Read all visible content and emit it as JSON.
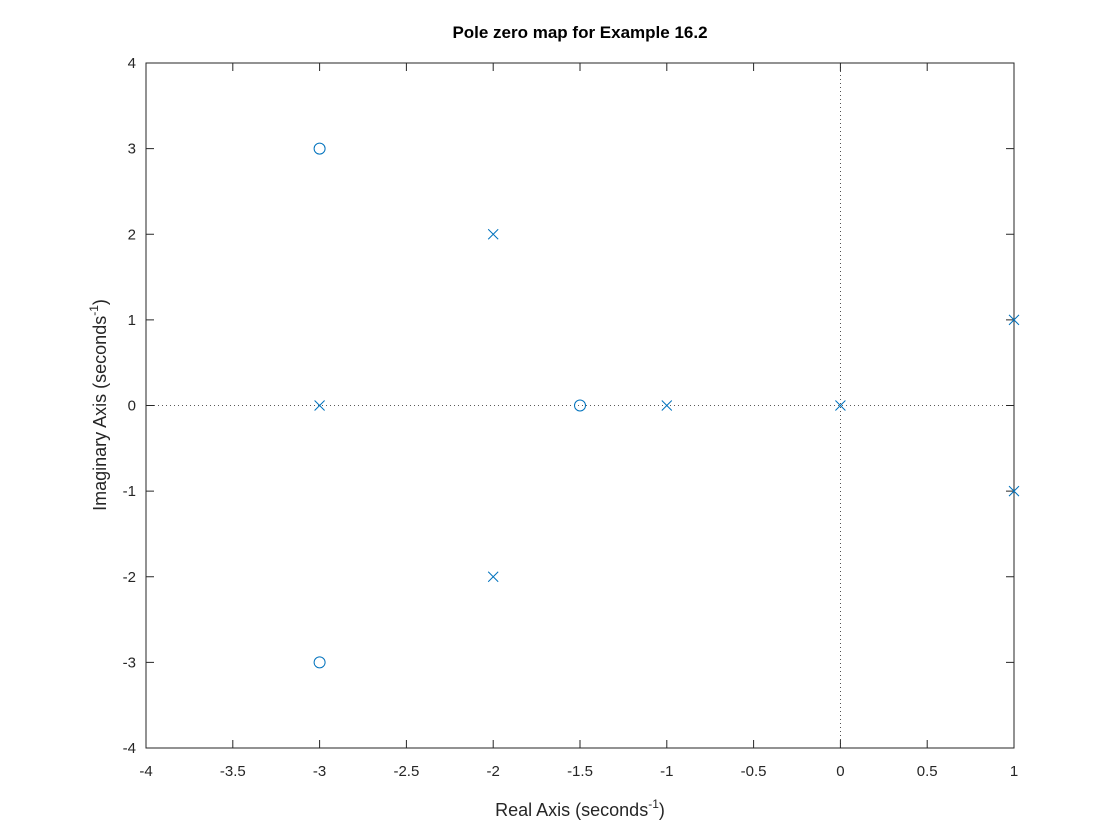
{
  "chart_data": {
    "type": "scatter",
    "title": "Pole zero map for Example 16.2",
    "x_label": {
      "text": "Real Axis (seconds",
      "superscript": "-1",
      "suffix": ")"
    },
    "y_label": {
      "text": "Imaginary Axis (seconds",
      "superscript": "-1",
      "suffix": ")"
    },
    "xlim": [
      -4,
      1
    ],
    "ylim": [
      -4,
      4
    ],
    "xticks": [
      -4,
      -3.5,
      -3,
      -2.5,
      -2,
      -1.5,
      -1,
      -0.5,
      0,
      0.5,
      1
    ],
    "yticks": [
      -4,
      -3,
      -2,
      -1,
      0,
      1,
      2,
      3,
      4
    ],
    "zero_lines": true,
    "box": true,
    "series": [
      {
        "marker": "x",
        "color": "#0072bd",
        "x": [
          -2,
          -3,
          -1,
          0,
          1,
          1,
          -2
        ],
        "y": [
          2,
          0,
          0,
          0,
          1,
          -1,
          -2
        ]
      },
      {
        "marker": "o",
        "color": "#0072bd",
        "x": [
          -3,
          -1.5,
          -3
        ],
        "y": [
          3,
          0,
          -3
        ]
      }
    ]
  }
}
